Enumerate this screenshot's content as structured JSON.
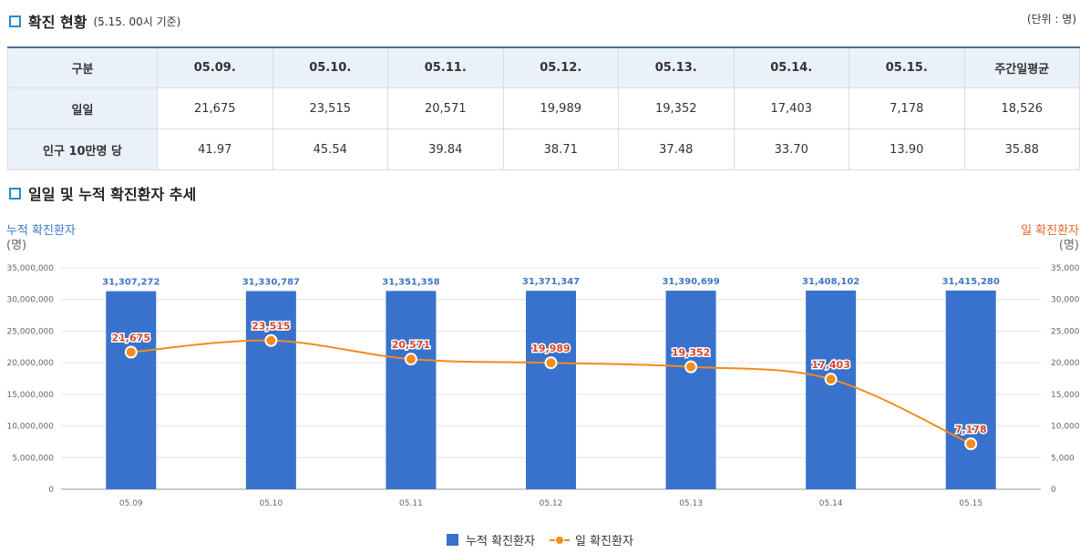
{
  "section1": {
    "title": "확진 현황",
    "subtitle": "(5.15. 00시 기준)",
    "unit": "(단위 : 명)"
  },
  "table": {
    "headers": [
      "구분",
      "05.09.",
      "05.10.",
      "05.11.",
      "05.12.",
      "05.13.",
      "05.14.",
      "05.15.",
      "주간일평균"
    ],
    "rows": [
      {
        "label": "일일",
        "values": [
          "21,675",
          "23,515",
          "20,571",
          "19,989",
          "19,352",
          "17,403",
          "7,178",
          "18,526"
        ]
      },
      {
        "label": "인구 10만명 당",
        "values": [
          "41.97",
          "45.54",
          "39.84",
          "38.71",
          "37.48",
          "33.70",
          "13.90",
          "35.88"
        ]
      }
    ]
  },
  "section2": {
    "title": "일일 및 누적 확진환자 추세"
  },
  "chart_data": {
    "type": "bar",
    "title": "일일 및 누적 확진환자 추세",
    "categories": [
      "05.09",
      "05.10",
      "05.11",
      "05.12",
      "05.13",
      "05.14",
      "05.15"
    ],
    "series": [
      {
        "name": "누적 확진환자",
        "type": "bar",
        "axis": "left",
        "color": "#3872cc",
        "values": [
          31307272,
          31330787,
          31351358,
          31371347,
          31390699,
          31408102,
          31415280
        ],
        "labels": [
          "31,307,272",
          "31,330,787",
          "31,351,358",
          "31,371,347",
          "31,390,699",
          "31,408,102",
          "31,415,280"
        ]
      },
      {
        "name": "일 확진환자",
        "type": "line",
        "axis": "right",
        "color": "#f28c1e",
        "values": [
          21675,
          23515,
          20571,
          19989,
          19352,
          17403,
          7178
        ],
        "labels": [
          "21,675",
          "23,515",
          "20,571",
          "19,989",
          "19,352",
          "17,403",
          "7,178"
        ]
      }
    ],
    "left_axis": {
      "title": "누적 확진환자",
      "unit": "(명)",
      "range": [
        0,
        35000000
      ],
      "ticks": [
        "0",
        "5,000,000",
        "10,000,000",
        "15,000,000",
        "20,000,000",
        "25,000,000",
        "30,000,000",
        "35,000,000"
      ]
    },
    "right_axis": {
      "title": "일 확진환자",
      "unit": "(명)",
      "range": [
        0,
        35000
      ],
      "ticks": [
        "0",
        "5,000",
        "10,000",
        "15,000",
        "20,000",
        "25,000",
        "30,000",
        "35,000"
      ]
    },
    "legend": [
      "누적 확진환자",
      "일 확진환자"
    ],
    "grid": true
  }
}
